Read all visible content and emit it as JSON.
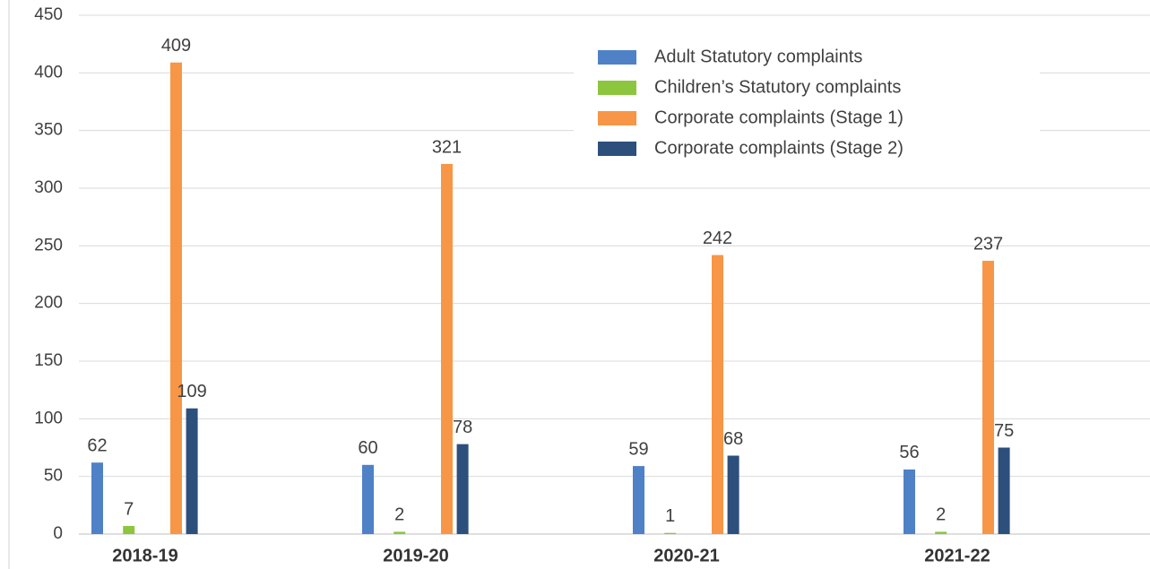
{
  "chart_data": {
    "type": "bar",
    "categories": [
      "2018-19",
      "2019-20",
      "2020-21",
      "2021-22"
    ],
    "series": [
      {
        "name": "Adult Statutory complaints",
        "color": "#4f81c7",
        "values": [
          62,
          60,
          59,
          56
        ]
      },
      {
        "name": "Children’s Statutory complaints",
        "color": "#8cc63f",
        "values": [
          7,
          2,
          1,
          2
        ]
      },
      {
        "name": "Corporate complaints (Stage 1)",
        "color": "#f79646",
        "values": [
          409,
          321,
          242,
          237
        ]
      },
      {
        "name": "Corporate complaints (Stage 2)",
        "color": "#2c4f7c",
        "values": [
          109,
          78,
          68,
          75
        ]
      }
    ],
    "ylim": [
      0,
      450
    ],
    "yticks": [
      0,
      50,
      100,
      150,
      200,
      250,
      300,
      350,
      400,
      450
    ],
    "grid": true,
    "legend": "top-right"
  }
}
